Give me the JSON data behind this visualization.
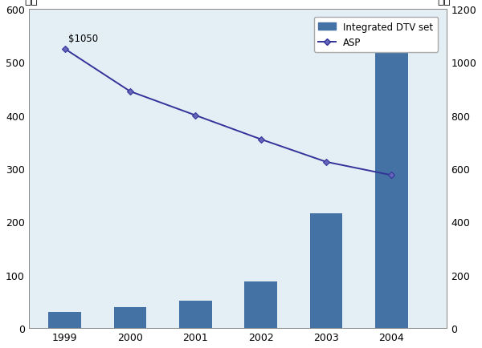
{
  "years": [
    1999,
    2000,
    2001,
    2002,
    2003,
    2004
  ],
  "bar_values": [
    30,
    40,
    52,
    88,
    215,
    570
  ],
  "asp_values": [
    1050,
    890,
    800,
    710,
    625,
    575
  ],
  "bar_color": "#4472A4",
  "line_color": "#333399",
  "marker_color": "#333399",
  "marker_face": "#6666BB",
  "background_color": "#E3EEF5",
  "ylabel_left": "千台",
  "ylabel_right": "美元",
  "ylim_left": [
    0,
    600
  ],
  "ylim_right": [
    0,
    1200
  ],
  "yticks_left": [
    0,
    100,
    200,
    300,
    400,
    500,
    600
  ],
  "yticks_right": [
    0,
    200,
    400,
    600,
    800,
    1000,
    1200
  ],
  "annotation_text": "$1050",
  "legend_labels": [
    "Integrated DTV set",
    "ASP"
  ],
  "bar_width": 0.5
}
